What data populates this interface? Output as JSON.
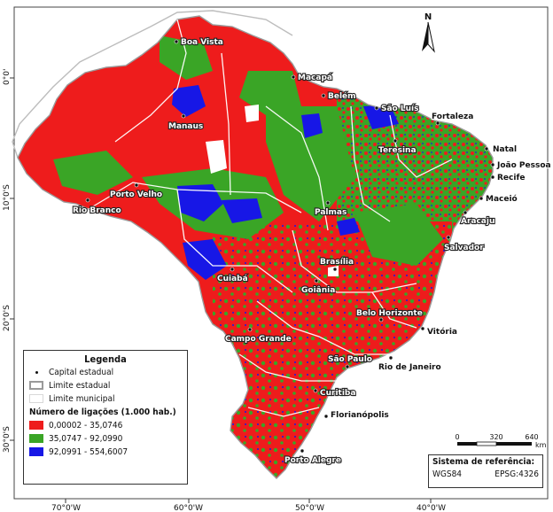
{
  "map": {
    "axis_x": [
      "70°0'W",
      "60°0'W",
      "50°0'W",
      "40°0'W"
    ],
    "axis_y": [
      "0°0'",
      "10°0'S",
      "20°0'S",
      "30°0'S"
    ],
    "north_label": "N",
    "cities": [
      {
        "id": "boa-vista",
        "name": "Boa Vista"
      },
      {
        "id": "macapa",
        "name": "Macapá"
      },
      {
        "id": "belem",
        "name": "Belém"
      },
      {
        "id": "manaus",
        "name": "Manaus"
      },
      {
        "id": "sao-luis",
        "name": "São Luís"
      },
      {
        "id": "fortaleza",
        "name": "Fortaleza"
      },
      {
        "id": "teresina",
        "name": "Teresina"
      },
      {
        "id": "natal",
        "name": "Natal"
      },
      {
        "id": "joao-pessoa",
        "name": "João Pessoa"
      },
      {
        "id": "recife",
        "name": "Recife"
      },
      {
        "id": "maceio",
        "name": "Maceió"
      },
      {
        "id": "aracaju",
        "name": "Aracaju"
      },
      {
        "id": "salvador",
        "name": "Salvador"
      },
      {
        "id": "porto-velho",
        "name": "Porto Velho"
      },
      {
        "id": "rio-branco",
        "name": "Rio Branco"
      },
      {
        "id": "palmas",
        "name": "Palmas"
      },
      {
        "id": "brasilia",
        "name": "Brasília"
      },
      {
        "id": "goiania",
        "name": "Goiânia"
      },
      {
        "id": "cuiaba",
        "name": "Cuiabá"
      },
      {
        "id": "belo-horizonte",
        "name": "Belo Horizonte"
      },
      {
        "id": "vitoria",
        "name": "Vitória"
      },
      {
        "id": "campo-grande",
        "name": "Campo Grande"
      },
      {
        "id": "sao-paulo",
        "name": "São Paulo"
      },
      {
        "id": "rio-de-janeiro",
        "name": "Rio de Janeiro"
      },
      {
        "id": "curitiba",
        "name": "Curitiba"
      },
      {
        "id": "florianopolis",
        "name": "Florianópolis"
      },
      {
        "id": "porto-alegre",
        "name": "Porto Alegre"
      }
    ]
  },
  "legend": {
    "title": "Legenda",
    "capital": "Capital estadual",
    "state_limit": "Limite estadual",
    "municipal_limit": "Limite municipal",
    "classes_title": "Número de ligações (1.000 hab.)",
    "classes": [
      {
        "label": "0,00002 - 35,0746",
        "color": "#ee1c1c"
      },
      {
        "label": "35,0747 - 92,0990",
        "color": "#3aa526"
      },
      {
        "label": "92,0991 - 554,6007",
        "color": "#1717e6"
      }
    ]
  },
  "scale": {
    "ticks": [
      "0",
      "320",
      "640"
    ],
    "unit": "km"
  },
  "reference": {
    "title": "Sistema de referência:",
    "datum": "WGS84",
    "code": "EPSG:4326"
  }
}
